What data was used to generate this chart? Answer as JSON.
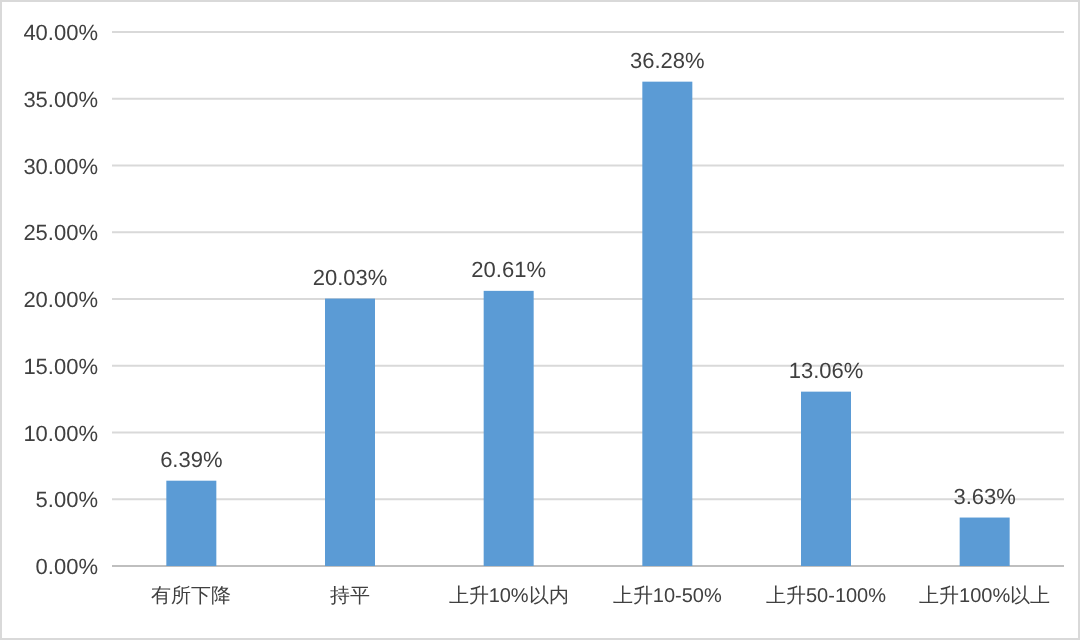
{
  "chart_data": {
    "type": "bar",
    "categories": [
      "有所下降",
      "持平",
      "上升10%以内",
      "上升10-50%",
      "上升50-100%",
      "上升100%以上"
    ],
    "values": [
      6.39,
      20.03,
      20.61,
      36.28,
      13.06,
      3.63
    ],
    "value_labels": [
      "6.39%",
      "20.03%",
      "20.61%",
      "36.28%",
      "13.06%",
      "3.63%"
    ],
    "color": "#5b9bd5",
    "ylim": [
      0,
      40
    ],
    "yticks": [
      {
        "value": 0,
        "label": "0.00%"
      },
      {
        "value": 5,
        "label": "5.00%"
      },
      {
        "value": 10,
        "label": "10.00%"
      },
      {
        "value": 15,
        "label": "15.00%"
      },
      {
        "value": 20,
        "label": "20.00%"
      },
      {
        "value": 25,
        "label": "25.00%"
      },
      {
        "value": 30,
        "label": "30.00%"
      },
      {
        "value": 35,
        "label": "35.00%"
      },
      {
        "value": 40,
        "label": "40.00%"
      }
    ],
    "grid": "y"
  }
}
